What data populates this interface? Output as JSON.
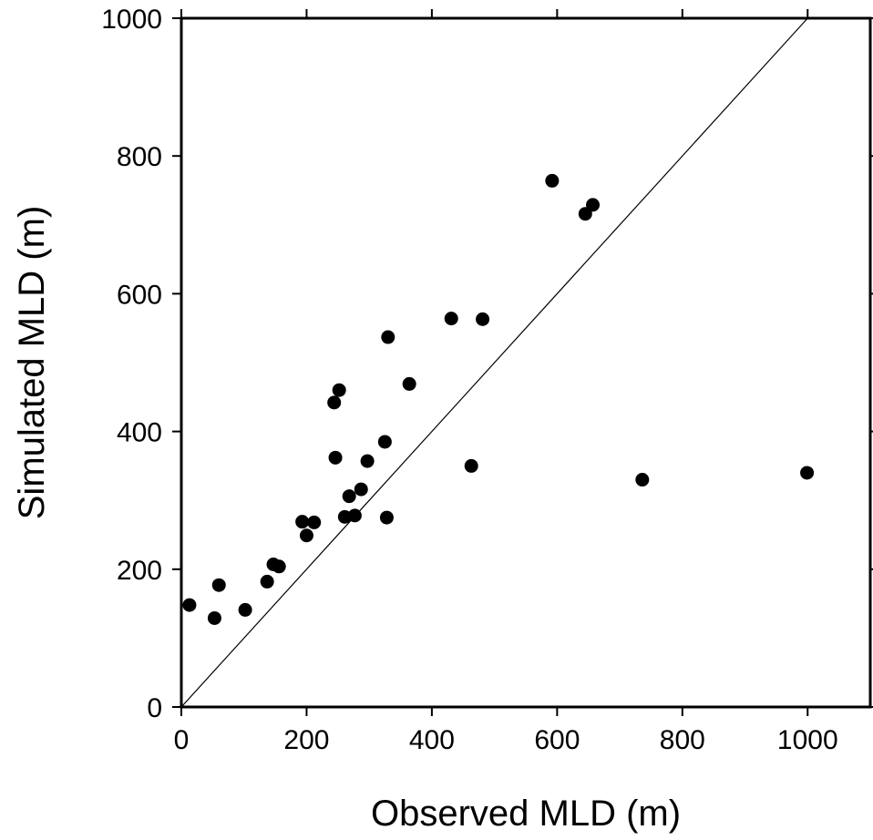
{
  "chart_data": {
    "type": "scatter",
    "title": "",
    "xlabel": "Observed MLD (m)",
    "ylabel": "Simulated MLD (m)",
    "xlim": [
      0,
      1100
    ],
    "ylim": [
      0,
      1000
    ],
    "xticks": [
      0,
      200,
      400,
      600,
      800,
      1000
    ],
    "yticks": [
      0,
      200,
      400,
      600,
      800,
      1000
    ],
    "reference_line": {
      "type": "one-to-one",
      "from": [
        0,
        0
      ],
      "to": [
        1000,
        1000
      ]
    },
    "grid": false,
    "legend": "none",
    "marker_color": "#000000",
    "points": [
      {
        "x": 13,
        "y": 148
      },
      {
        "x": 53,
        "y": 129
      },
      {
        "x": 60,
        "y": 177
      },
      {
        "x": 102,
        "y": 141
      },
      {
        "x": 137,
        "y": 182
      },
      {
        "x": 147,
        "y": 207
      },
      {
        "x": 156,
        "y": 204
      },
      {
        "x": 193,
        "y": 269
      },
      {
        "x": 200,
        "y": 249
      },
      {
        "x": 212,
        "y": 268
      },
      {
        "x": 244,
        "y": 442
      },
      {
        "x": 246,
        "y": 362
      },
      {
        "x": 252,
        "y": 460
      },
      {
        "x": 261,
        "y": 276
      },
      {
        "x": 268,
        "y": 306
      },
      {
        "x": 277,
        "y": 278
      },
      {
        "x": 287,
        "y": 316
      },
      {
        "x": 297,
        "y": 357
      },
      {
        "x": 325,
        "y": 385
      },
      {
        "x": 328,
        "y": 275
      },
      {
        "x": 330,
        "y": 537
      },
      {
        "x": 364,
        "y": 469
      },
      {
        "x": 431,
        "y": 564
      },
      {
        "x": 463,
        "y": 350
      },
      {
        "x": 481,
        "y": 563
      },
      {
        "x": 592,
        "y": 764
      },
      {
        "x": 645,
        "y": 716
      },
      {
        "x": 657,
        "y": 729
      },
      {
        "x": 736,
        "y": 330
      },
      {
        "x": 999,
        "y": 340
      }
    ]
  }
}
